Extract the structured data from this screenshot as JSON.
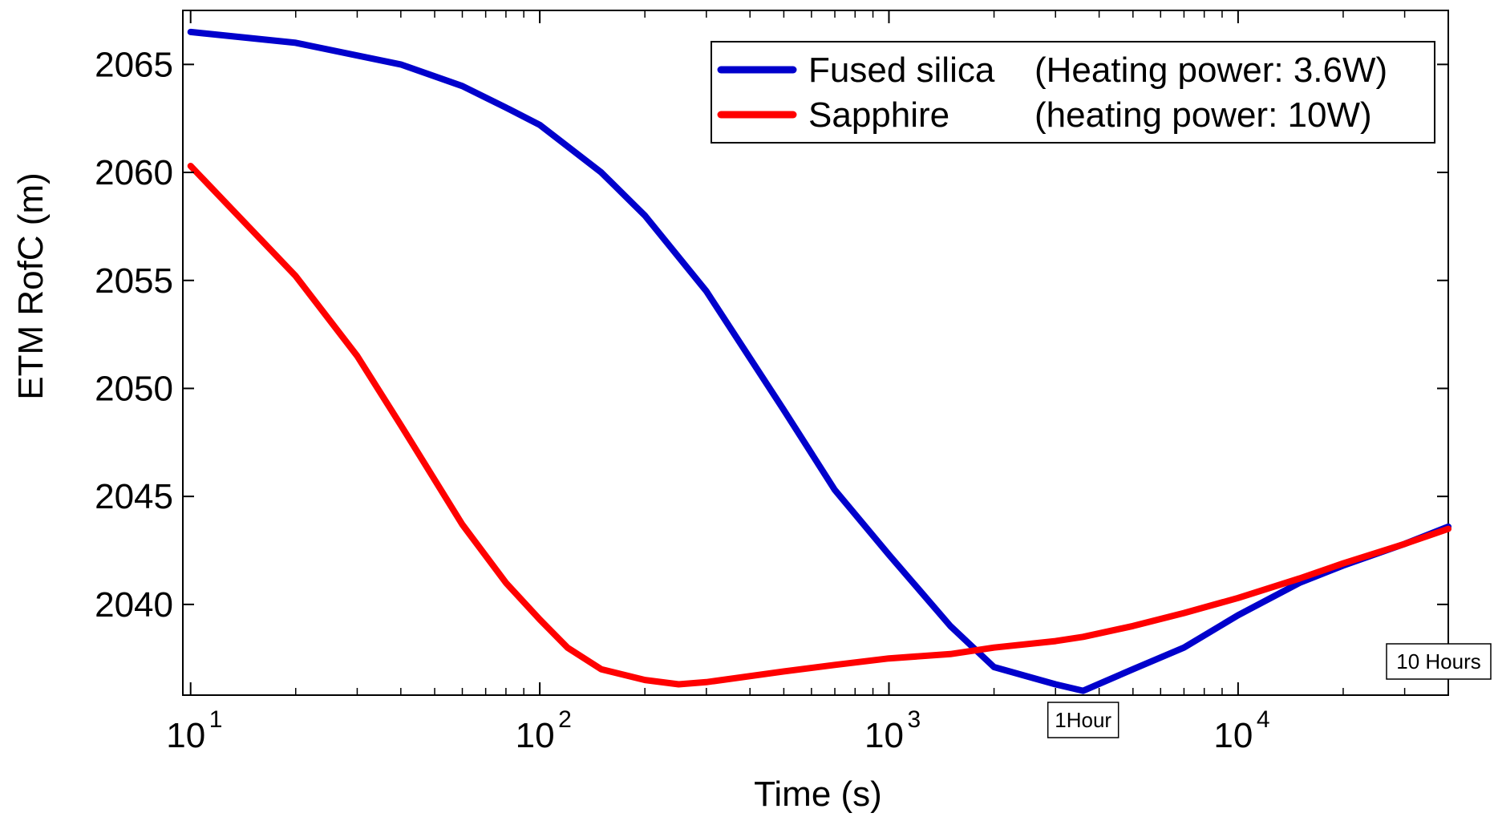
{
  "chart_data": {
    "type": "line",
    "title": "",
    "xlabel": "Time (s)",
    "ylabel": "ETM RofC (m)",
    "x_scale": "log",
    "xlim": [
      9.5,
      40000
    ],
    "ylim": [
      2035.8,
      2067.5
    ],
    "x_ticks": [
      {
        "value": 10,
        "base": "10",
        "exp": "1"
      },
      {
        "value": 100,
        "base": "10",
        "exp": "2"
      },
      {
        "value": 1000,
        "base": "10",
        "exp": "3"
      },
      {
        "value": 10000,
        "base": "10",
        "exp": "4"
      }
    ],
    "y_ticks": [
      {
        "value": 2040,
        "label": "2040"
      },
      {
        "value": 2045,
        "label": "2045"
      },
      {
        "value": 2050,
        "label": "2050"
      },
      {
        "value": 2055,
        "label": "2055"
      },
      {
        "value": 2060,
        "label": "2060"
      },
      {
        "value": 2065,
        "label": "2065"
      }
    ],
    "legend_position": "top-right",
    "grid": false,
    "series": [
      {
        "name": "Fused silica (Heating power: 3.6W)",
        "legend_name": "Fused silica",
        "legend_note": "(Heating power: 3.6W)",
        "color": "#0000cc",
        "x": [
          10,
          20,
          40,
          60,
          80,
          100,
          150,
          200,
          300,
          500,
          700,
          1000,
          1500,
          2000,
          3000,
          3600,
          5000,
          7000,
          10000,
          15000,
          20000,
          30000,
          40000
        ],
        "y": [
          2066.5,
          2066.0,
          2065.0,
          2064.0,
          2063.0,
          2062.2,
          2060.0,
          2058.0,
          2054.5,
          2049.0,
          2045.3,
          2042.3,
          2039.0,
          2037.1,
          2036.3,
          2036.0,
          2037.0,
          2038.0,
          2039.5,
          2041.0,
          2041.8,
          2042.8,
          2043.6
        ]
      },
      {
        "name": "Sapphire (heating power: 10W)",
        "legend_name": "Sapphire",
        "legend_note": "(heating power: 10W)",
        "color": "#ff0000",
        "x": [
          10,
          20,
          30,
          40,
          60,
          80,
          100,
          120,
          150,
          200,
          250,
          300,
          500,
          700,
          1000,
          1500,
          2000,
          3000,
          3600,
          5000,
          7000,
          10000,
          15000,
          20000,
          30000,
          40000
        ],
        "y": [
          2060.3,
          2055.2,
          2051.5,
          2048.3,
          2043.7,
          2041.0,
          2039.3,
          2038.0,
          2037.0,
          2036.5,
          2036.3,
          2036.4,
          2036.9,
          2037.2,
          2037.5,
          2037.7,
          2038.0,
          2038.3,
          2038.5,
          2039.0,
          2039.6,
          2040.3,
          2041.2,
          2041.9,
          2042.8,
          2043.5
        ]
      }
    ],
    "annotations": [
      {
        "text": "1Hour",
        "x": 3600
      },
      {
        "text": "10 Hours",
        "x": 36000
      }
    ]
  }
}
